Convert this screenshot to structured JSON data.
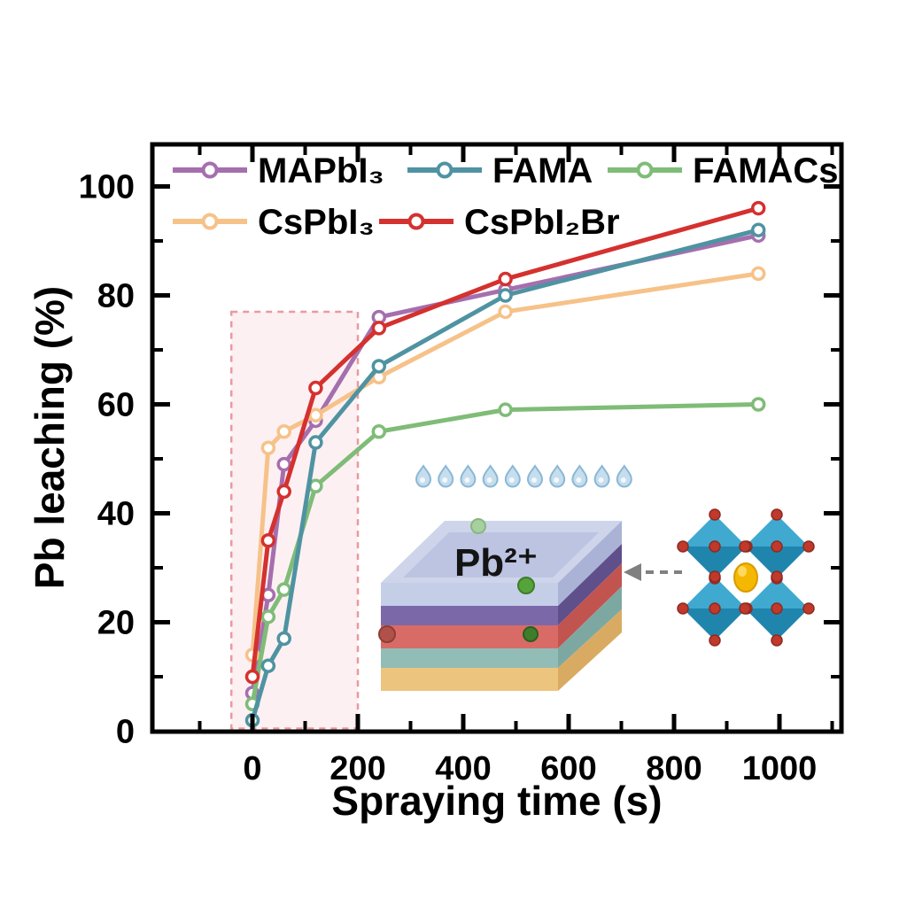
{
  "figure": {
    "background": "#ffffff"
  },
  "chart_data": {
    "type": "line",
    "title": "",
    "xlabel": "Spraying time (s)",
    "ylabel": "Pb leaching (%)",
    "x": [
      0,
      30,
      60,
      120,
      240,
      480,
      960
    ],
    "series": [
      {
        "name": "MAPbI₃",
        "color": "#a56fae",
        "values": [
          7,
          25,
          49,
          57,
          76,
          81,
          91
        ]
      },
      {
        "name": "CsPbI₃",
        "color": "#f6c289",
        "values": [
          14,
          52,
          55,
          58,
          65,
          77,
          84
        ]
      },
      {
        "name": "FAMACs",
        "color": "#7fbc78",
        "values": [
          5,
          21,
          26,
          45,
          55,
          59,
          60
        ]
      },
      {
        "name": "FAMA",
        "color": "#4f93a2",
        "values": [
          2,
          12,
          17,
          53,
          67,
          80,
          92
        ]
      },
      {
        "name": "CsPbI₂Br",
        "color": "#d4312f",
        "values": [
          10,
          35,
          44,
          63,
          74,
          83,
          96
        ]
      }
    ],
    "x_ticks": [
      0,
      200,
      400,
      600,
      800,
      1000
    ],
    "y_ticks": [
      0,
      20,
      40,
      60,
      80,
      100
    ],
    "x_minor_step": 100,
    "y_minor_step": 10,
    "xlim": [
      -190,
      1118
    ],
    "ylim": [
      0,
      107.5
    ],
    "grid": false,
    "legend_position": "top-inside",
    "legend_rows": [
      [
        0,
        3,
        2
      ],
      [
        1,
        4
      ]
    ],
    "marker": "open-circle",
    "annotations": {
      "highlight_box": {
        "x0": -40,
        "x1": 200,
        "y0": 0,
        "y1": 77,
        "border_color": "#e89aa0",
        "fill_color": "#fdf0f2",
        "style": "dashed"
      }
    }
  },
  "inset": {
    "pb_label": "Pb²⁺",
    "droplet_count": 10,
    "droplet_color": "#c6dded",
    "stack_layers": [
      {
        "name": "glass-top",
        "color": "#ccd3ea"
      },
      {
        "name": "glass-front",
        "color": "#c2cbe6"
      },
      {
        "name": "purple-layer",
        "color": "#7b68a8"
      },
      {
        "name": "red-layer",
        "color": "#d96b67"
      },
      {
        "name": "teal-layer",
        "color": "#92bcb6"
      },
      {
        "name": "tan-layer",
        "color": "#ecc47e"
      }
    ],
    "ion_colors": {
      "pale_green": "#a8cf9f",
      "green": "#57a33b",
      "dark_green": "#3f7d2c",
      "dark_red": "#b05249"
    },
    "crystal": {
      "octahedron_color_top": "#3fa9d0",
      "octahedron_color_bottom": "#1f85ad",
      "vertex_dot_color": "#c0392b",
      "center_ion_color": "#f5b800"
    },
    "arrow_color": "#808080"
  }
}
